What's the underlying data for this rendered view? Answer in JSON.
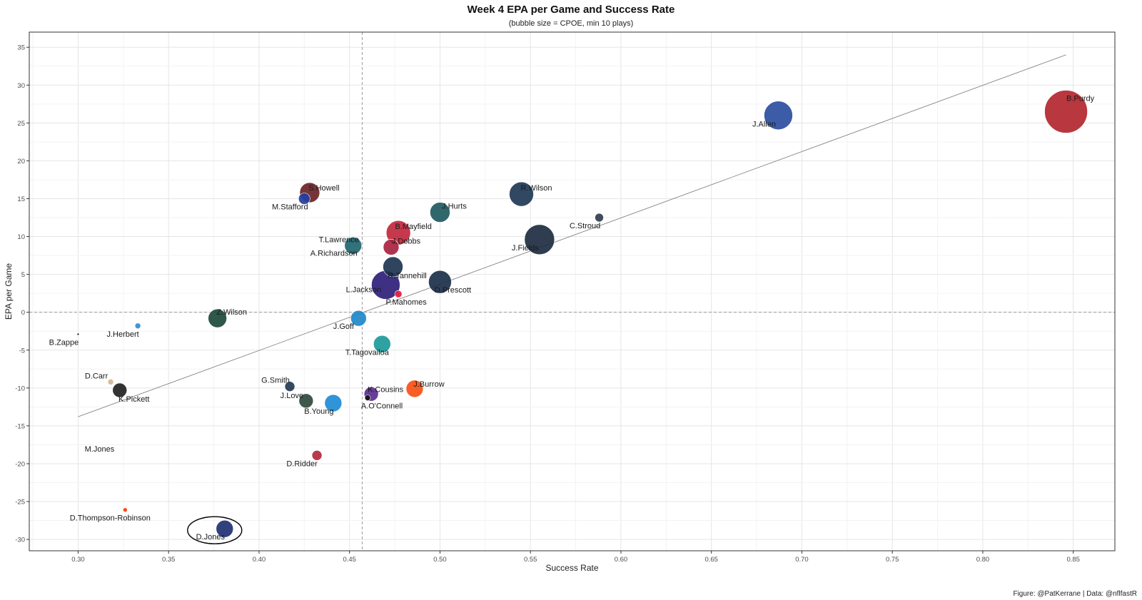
{
  "chart_data": {
    "type": "scatter",
    "title": "Week 4 EPA per Game and Success Rate",
    "subtitle": "(bubble size = CPOE, min 10 plays)",
    "xlabel": "Success Rate",
    "ylabel": "EPA per Game",
    "caption": "Figure: @PatKerrane | Data: @nflfastR",
    "xlim": [
      0.273,
      0.873
    ],
    "ylim": [
      -31.5,
      37
    ],
    "xticks": [
      "0.30",
      "0.35",
      "0.40",
      "0.45",
      "0.50",
      "0.55",
      "0.60",
      "0.65",
      "0.70",
      "0.75",
      "0.80",
      "0.85"
    ],
    "yticks": [
      "35",
      "30",
      "25",
      "20",
      "15",
      "10",
      "5",
      "0",
      "-5",
      "-10",
      "-15",
      "-20",
      "-25",
      "-30"
    ],
    "grid": true,
    "mean_x": 0.457,
    "mean_y": 0,
    "trend_line": {
      "x": [
        0.3,
        0.846
      ],
      "y": [
        -13.8,
        34.0
      ]
    },
    "points": [
      {
        "name": "B.Purdy",
        "x": 0.846,
        "y": 26.5,
        "size": 30,
        "color": "#B3262F"
      },
      {
        "name": "J.Allen",
        "x": 0.687,
        "y": 26.0,
        "size": 20,
        "color": "#2B4EA0"
      },
      {
        "name": "R.Wilson",
        "x": 0.545,
        "y": 15.6,
        "size": 17,
        "color": "#203856"
      },
      {
        "name": "C.Stroud",
        "x": 0.588,
        "y": 12.5,
        "size": 6,
        "color": "#2F3E4E"
      },
      {
        "name": "J.Fields",
        "x": 0.555,
        "y": 9.6,
        "size": 21,
        "color": "#1E2B40"
      },
      {
        "name": "S.Howell",
        "x": 0.428,
        "y": 15.8,
        "size": 14,
        "color": "#6B2327"
      },
      {
        "name": "M.Stafford",
        "x": 0.425,
        "y": 15.0,
        "size": 8,
        "color": "#243EA0"
      },
      {
        "name": "J.Hurts",
        "x": 0.5,
        "y": 13.2,
        "size": 14,
        "color": "#1E5A5F"
      },
      {
        "name": "B.Mayfield",
        "x": 0.477,
        "y": 10.5,
        "size": 17,
        "color": "#C1283D"
      },
      {
        "name": "J.Dobbs",
        "x": 0.473,
        "y": 8.6,
        "size": 11,
        "color": "#A8243F"
      },
      {
        "name": "T.Lawrence",
        "x": 0.452,
        "y": 8.8,
        "size": 12,
        "color": "#1F6670"
      },
      {
        "name": "A.Richardson",
        "x": 0.452,
        "y": 8.8,
        "size": 0,
        "color": "#1F3A64"
      },
      {
        "name": "R.Tannehill",
        "x": 0.474,
        "y": 6.0,
        "size": 14,
        "color": "#1D3551"
      },
      {
        "name": "D.Prescott",
        "x": 0.5,
        "y": 4.0,
        "size": 16,
        "color": "#1C2F4A"
      },
      {
        "name": "L.Jackson",
        "x": 0.47,
        "y": 3.6,
        "size": 20,
        "color": "#2E1F7A"
      },
      {
        "name": "P.Mahomes",
        "x": 0.477,
        "y": 2.4,
        "size": 5,
        "color": "#E31837"
      },
      {
        "name": "Z.Wilson",
        "x": 0.377,
        "y": -0.8,
        "size": 13,
        "color": "#1D4A3A"
      },
      {
        "name": "J.Goff",
        "x": 0.455,
        "y": -0.8,
        "size": 11,
        "color": "#1E88C9"
      },
      {
        "name": "J.Herbert",
        "x": 0.333,
        "y": -1.8,
        "size": 4,
        "color": "#2D8FD5"
      },
      {
        "name": "B.Zappe",
        "x": 0.3,
        "y": -2.9,
        "size": 1.5,
        "color": "#111111"
      },
      {
        "name": "T.Tagovailoa",
        "x": 0.468,
        "y": -4.2,
        "size": 12,
        "color": "#1C9A9A"
      },
      {
        "name": "D.Carr",
        "x": 0.318,
        "y": -9.2,
        "size": 4,
        "color": "#D1B78C"
      },
      {
        "name": "K.Pickett",
        "x": 0.323,
        "y": -10.3,
        "size": 10,
        "color": "#222222"
      },
      {
        "name": "G.Smith",
        "x": 0.417,
        "y": -9.8,
        "size": 7,
        "color": "#243A55"
      },
      {
        "name": "J.Love",
        "x": 0.426,
        "y": -11.7,
        "size": 10,
        "color": "#2E4A3D"
      },
      {
        "name": "B.Young",
        "x": 0.441,
        "y": -12.0,
        "size": 12,
        "color": "#1E8BD6"
      },
      {
        "name": "K.Cousins",
        "x": 0.462,
        "y": -10.8,
        "size": 10,
        "color": "#5B2C91"
      },
      {
        "name": "A.O'Connell",
        "x": 0.46,
        "y": -11.3,
        "size": 4,
        "color": "#111111"
      },
      {
        "name": "J.Burrow",
        "x": 0.486,
        "y": -10.1,
        "size": 12,
        "color": "#FB4F14"
      },
      {
        "name": "D.Ridder",
        "x": 0.432,
        "y": -18.9,
        "size": 7,
        "color": "#B02A3C"
      },
      {
        "name": "M.Jones",
        "x": 0.3,
        "y": -18.5,
        "size": 0,
        "color": "#1C2E5A"
      },
      {
        "name": "D.Thompson-Robinson",
        "x": 0.326,
        "y": -26.1,
        "size": 3,
        "color": "#FF3C00"
      },
      {
        "name": "D.Jones",
        "x": 0.381,
        "y": -28.6,
        "size": 12,
        "color": "#1F3173"
      }
    ]
  }
}
